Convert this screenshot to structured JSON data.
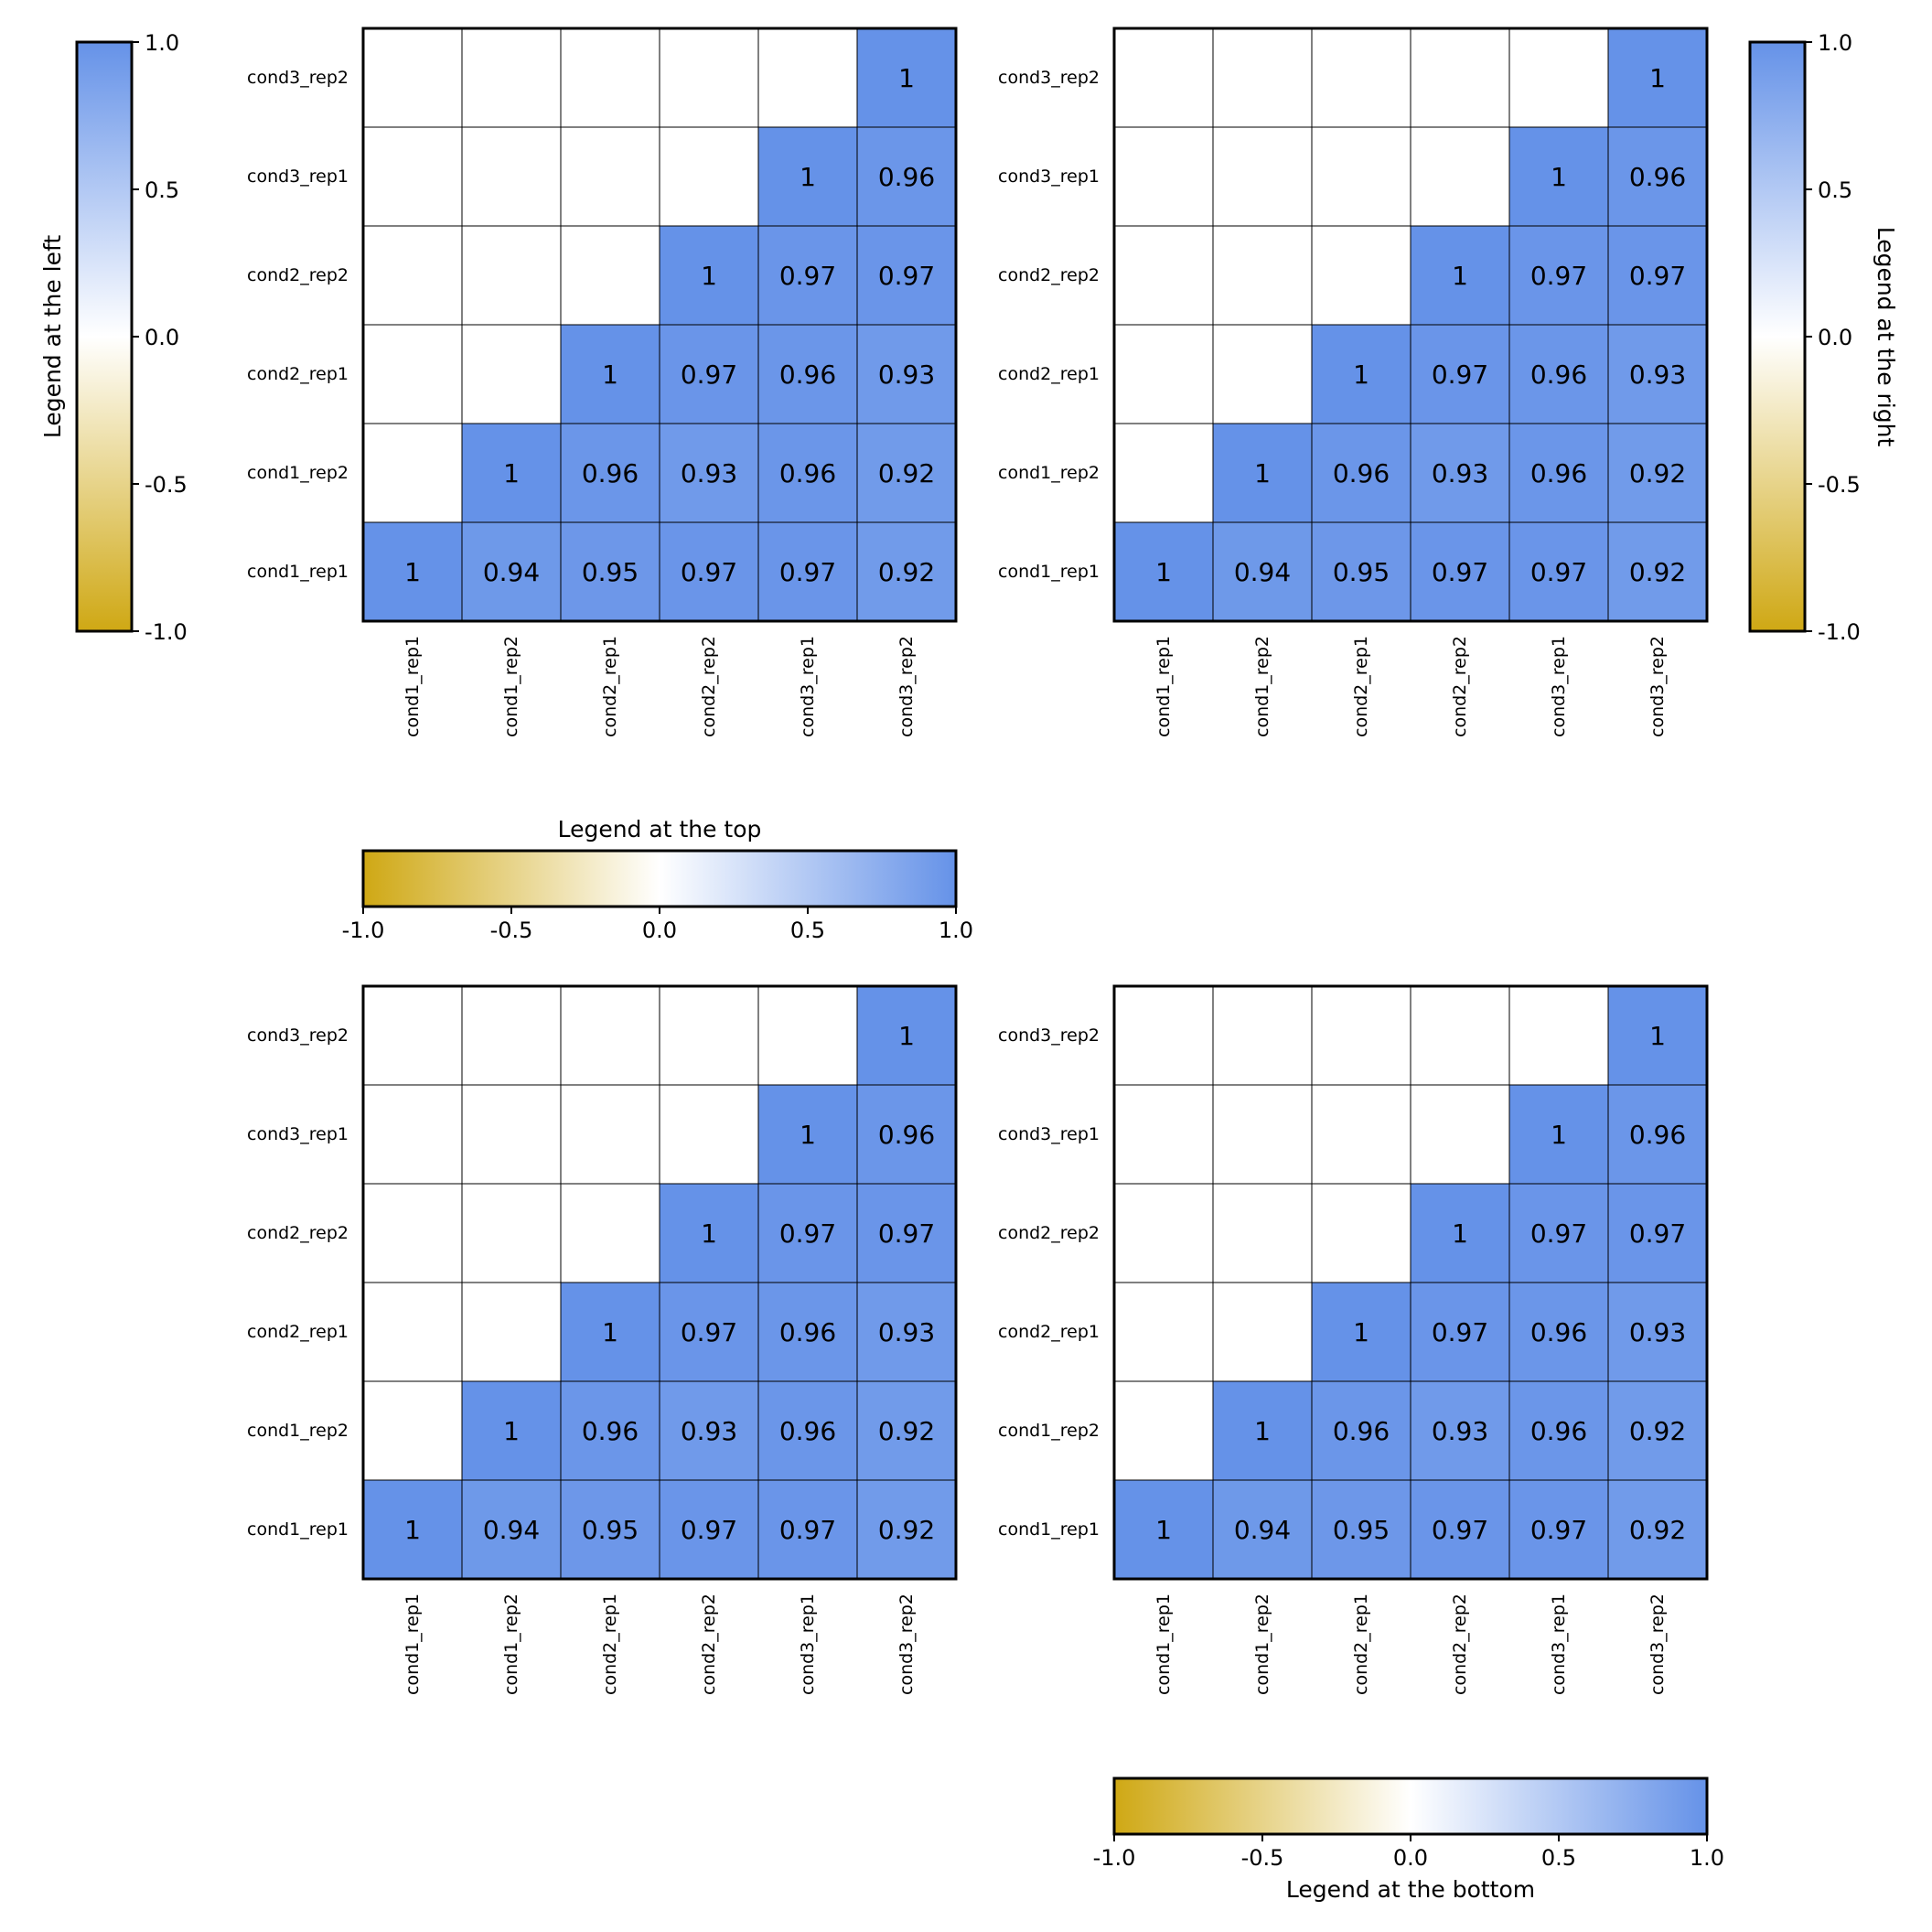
{
  "chart_data": {
    "type": "heatmap",
    "row_labels": [
      "cond1_rep1",
      "cond1_rep2",
      "cond2_rep1",
      "cond2_rep2",
      "cond3_rep1",
      "cond3_rep2"
    ],
    "col_labels": [
      "cond1_rep1",
      "cond1_rep2",
      "cond2_rep1",
      "cond2_rep2",
      "cond3_rep1",
      "cond3_rep2"
    ],
    "values": [
      [
        "1",
        "0.94",
        "0.95",
        "0.97",
        "0.97",
        "0.92"
      ],
      [
        "",
        "1",
        "0.96",
        "0.93",
        "0.96",
        "0.92"
      ],
      [
        "",
        "",
        "1",
        "0.97",
        "0.96",
        "0.93"
      ],
      [
        "",
        "",
        "",
        "1",
        "0.97",
        "0.97"
      ],
      [
        "",
        "",
        "",
        "",
        "1",
        "0.96"
      ],
      [
        "",
        "",
        "",
        "",
        "",
        "1"
      ]
    ],
    "shown": "upper triangle including diagonal",
    "colormap": {
      "low": "#cfa814",
      "mid": "#ffffff",
      "high": "#6592e8"
    },
    "colorbar_range": [
      -1.0,
      1.0
    ],
    "colorbar_ticks": [
      "-1.0",
      "-0.5",
      "0.0",
      "0.5",
      "1.0"
    ],
    "panels": [
      {
        "legend_position": "left",
        "legend_title": "Legend at the left"
      },
      {
        "legend_position": "right",
        "legend_title": "Legend at the right"
      },
      {
        "legend_position": "top",
        "legend_title": "Legend at the top"
      },
      {
        "legend_position": "bottom",
        "legend_title": "Legend at the bottom"
      }
    ]
  }
}
